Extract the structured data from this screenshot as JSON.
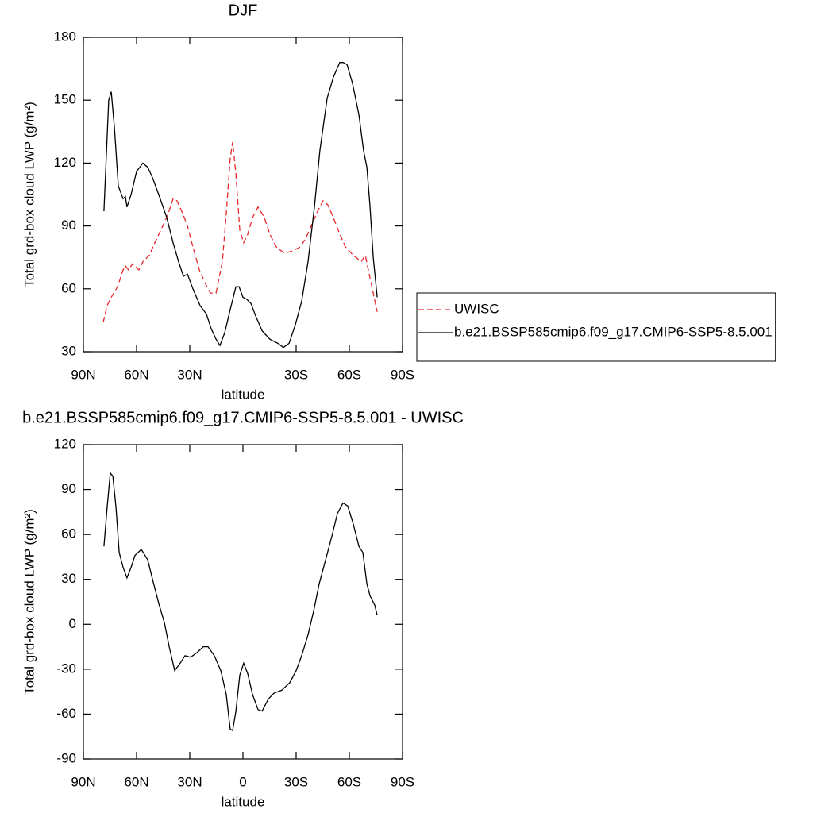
{
  "chart_data": [
    {
      "type": "line",
      "title": "DJF",
      "xlabel": "latitude",
      "ylabel": "Total grd-box cloud LWP (g/m²)",
      "xlim": [
        90,
        -90
      ],
      "xticks": [
        {
          "value": 90,
          "label": "90N"
        },
        {
          "value": 60,
          "label": "60N"
        },
        {
          "value": 30,
          "label": "30N"
        },
        {
          "value": -30,
          "label": "30S"
        },
        {
          "value": -60,
          "label": "60S"
        },
        {
          "value": -90,
          "label": "90S"
        }
      ],
      "ylim": [
        30,
        180
      ],
      "yticks": [
        30,
        60,
        90,
        120,
        150,
        180
      ],
      "legend": "right",
      "series": [
        {
          "name": "UWISC",
          "color": "#e8262b",
          "line_style": "dashed",
          "x": [
            78.8,
            76.6,
            74.3,
            70.7,
            67.6,
            66.3,
            64.5,
            62.2,
            58.7,
            56.4,
            52.8,
            49.7,
            45.2,
            42.1,
            39.4,
            37.2,
            34.0,
            31.3,
            28.2,
            24.6,
            21.5,
            18.4,
            15.2,
            11.6,
            9.4,
            7.2,
            5.8,
            4.0,
            1.8,
            -0.4,
            -2.7,
            -5.4,
            -8.5,
            -12.1,
            -15.2,
            -18.8,
            -23.3,
            -27.8,
            -32.3,
            -35.4,
            -38.5,
            -42.1,
            -45.2,
            -47.9,
            -51.0,
            -54.2,
            -57.8,
            -62.2,
            -66.7,
            -69.0,
            -71.2,
            -73.5,
            -75.7
          ],
          "values": [
            44,
            52,
            56,
            61,
            69,
            71,
            69,
            72,
            69,
            73,
            76,
            82,
            90,
            96,
            103,
            102,
            96,
            90,
            80,
            69,
            63,
            58,
            58,
            73,
            96,
            122,
            130,
            115,
            88,
            82,
            86,
            94,
            99,
            94,
            86,
            80,
            77,
            78,
            80,
            84,
            90,
            97,
            102,
            100,
            94,
            87,
            80,
            76,
            73,
            76,
            67,
            58,
            49
          ]
        },
        {
          "name": "b.e21.BSSP585cmip6.f09_g17.CMIP6-SSP5-8.5.001",
          "color": "#000000",
          "line_style": "solid",
          "x": [
            78.4,
            75.7,
            74.3,
            72.5,
            70.3,
            67.6,
            66.3,
            65.4,
            63.1,
            60.0,
            56.4,
            53.7,
            51.0,
            47.5,
            43.0,
            39.4,
            36.3,
            33.6,
            31.3,
            28.2,
            24.2,
            20.6,
            17.9,
            15.2,
            13.0,
            10.3,
            7.2,
            4.0,
            2.2,
            0.0,
            -2.2,
            -4.5,
            -7.2,
            -10.8,
            -15.2,
            -19.7,
            -22.8,
            -26.0,
            -29.6,
            -33.1,
            -36.7,
            -40.3,
            -43.4,
            -47.5,
            -51.0,
            -54.6,
            -56.4,
            -58.7,
            -61.8,
            -65.4,
            -68.0,
            -69.9,
            -71.7,
            -73.5,
            -75.7
          ],
          "values": [
            97,
            150,
            154,
            137,
            109,
            103,
            104,
            99,
            105,
            116,
            120,
            118,
            113,
            105,
            94,
            82,
            73,
            66,
            67,
            60,
            52,
            48,
            41,
            36,
            33,
            39,
            50,
            61,
            61,
            56,
            55,
            53,
            47,
            40,
            36,
            34,
            32,
            34,
            43,
            54,
            73,
            99,
            126,
            151,
            161,
            168,
            168,
            167,
            158,
            143,
            126,
            118,
            99,
            75,
            56
          ]
        }
      ]
    },
    {
      "type": "line",
      "title": "b.e21.BSSP585cmip6.f09_g17.CMIP6-SSP5-8.5.001 - UWISC",
      "xlabel": "latitude",
      "ylabel": "Total grd-box cloud LWP (g/m²)",
      "xlim": [
        90,
        -90
      ],
      "xticks": [
        {
          "value": 90,
          "label": "90N"
        },
        {
          "value": 60,
          "label": "60N"
        },
        {
          "value": 30,
          "label": "30N"
        },
        0,
        {
          "value": -30,
          "label": "30S"
        },
        {
          "value": -60,
          "label": "60S"
        },
        {
          "value": -90,
          "label": "90S"
        }
      ],
      "ylim": [
        -90,
        120
      ],
      "yticks": [
        -90,
        -60,
        -30,
        0,
        30,
        60,
        90,
        120
      ],
      "series": [
        {
          "color": "#000000",
          "line_style": "solid",
          "x": [
            78.4,
            76.6,
            74.8,
            73.4,
            71.6,
            69.8,
            67.6,
            65.4,
            63.1,
            60.9,
            57.3,
            53.7,
            51.0,
            47.5,
            44.3,
            41.6,
            38.5,
            35.4,
            32.7,
            29.5,
            26.0,
            22.4,
            19.7,
            16.1,
            12.5,
            9.4,
            7.2,
            5.8,
            4.0,
            1.8,
            -0.4,
            -2.7,
            -5.4,
            -8.5,
            -10.8,
            -14.3,
            -17.5,
            -21.9,
            -26.4,
            -30.0,
            -33.1,
            -36.7,
            -39.9,
            -43.0,
            -46.6,
            -50.2,
            -53.3,
            -56.4,
            -59.1,
            -62.2,
            -65.4,
            -67.6,
            -69.9,
            -71.7,
            -74.3,
            -75.7
          ],
          "values": [
            52,
            78,
            101,
            99,
            78,
            48,
            38,
            31,
            38,
            46,
            50,
            43,
            30,
            14,
            1,
            -15,
            -31,
            -26,
            -21,
            -22,
            -19,
            -15,
            -15,
            -21,
            -31,
            -47,
            -70,
            -71,
            -58,
            -34,
            -26,
            -33,
            -47,
            -57,
            -58,
            -50,
            -46,
            -44,
            -39,
            -31,
            -21,
            -7,
            9,
            27,
            43,
            59,
            74,
            81,
            79,
            67,
            52,
            48,
            27,
            19,
            13,
            6
          ]
        }
      ]
    }
  ]
}
